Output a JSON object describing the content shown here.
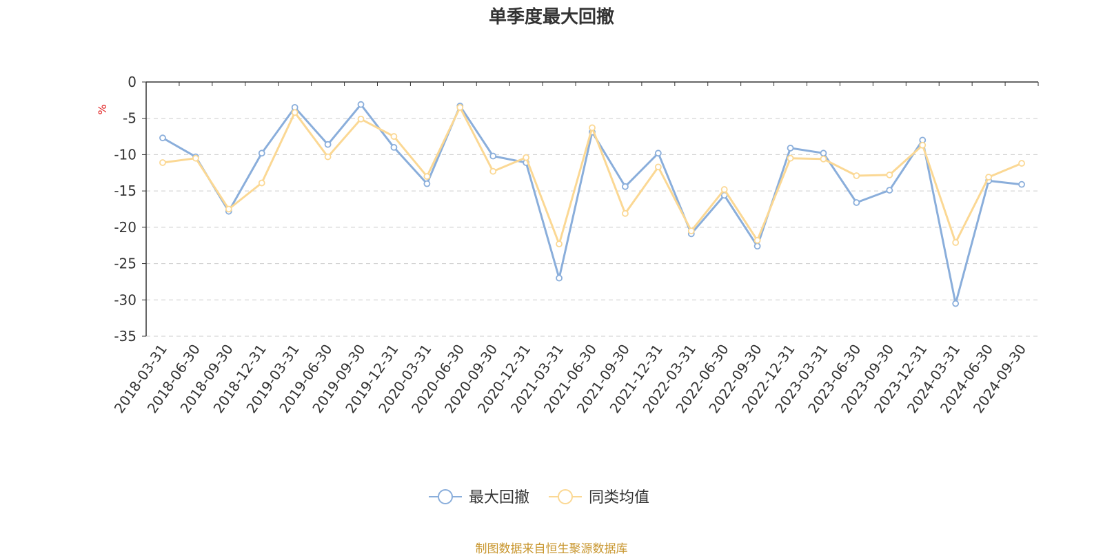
{
  "chart_data": {
    "type": "line",
    "title": "单季度最大回撤",
    "ylabel": "%",
    "ylim": [
      -35,
      0
    ],
    "yticks": [
      0,
      -5,
      -10,
      -15,
      -20,
      -25,
      -30,
      -35
    ],
    "grid": true,
    "legend_position": "bottom",
    "categories": [
      "2018-03-31",
      "2018-06-30",
      "2018-09-30",
      "2018-12-31",
      "2019-03-31",
      "2019-06-30",
      "2019-09-30",
      "2019-12-31",
      "2020-03-31",
      "2020-06-30",
      "2020-09-30",
      "2020-12-31",
      "2021-03-31",
      "2021-06-30",
      "2021-09-30",
      "2021-12-31",
      "2022-03-31",
      "2022-06-30",
      "2022-09-30",
      "2022-12-31",
      "2023-03-31",
      "2023-06-30",
      "2023-09-30",
      "2023-12-31",
      "2024-03-31",
      "2024-06-30",
      "2024-09-30"
    ],
    "series": [
      {
        "name": "最大回撤",
        "color": "#8aaedb",
        "values": [
          -7.7,
          -10.3,
          -17.8,
          -9.8,
          -3.5,
          -8.6,
          -3.1,
          -9.0,
          -14.0,
          -3.3,
          -10.2,
          -11.1,
          -27.0,
          -6.9,
          -14.4,
          -9.8,
          -20.9,
          -15.6,
          -22.6,
          -9.1,
          -9.8,
          -16.6,
          -14.9,
          -8.0,
          -30.5,
          -13.6,
          -14.1
        ]
      },
      {
        "name": "同类均值",
        "color": "#fbd894",
        "values": [
          -11.1,
          -10.5,
          -17.5,
          -13.9,
          -4.2,
          -10.3,
          -5.1,
          -7.5,
          -13.0,
          -3.5,
          -12.3,
          -10.4,
          -22.3,
          -6.3,
          -18.1,
          -11.7,
          -20.5,
          -14.8,
          -21.8,
          -10.5,
          -10.6,
          -12.9,
          -12.8,
          -8.7,
          -22.1,
          -13.1,
          -11.2
        ]
      }
    ]
  },
  "footer": {
    "source_text": "制图数据来自恒生聚源数据库"
  }
}
